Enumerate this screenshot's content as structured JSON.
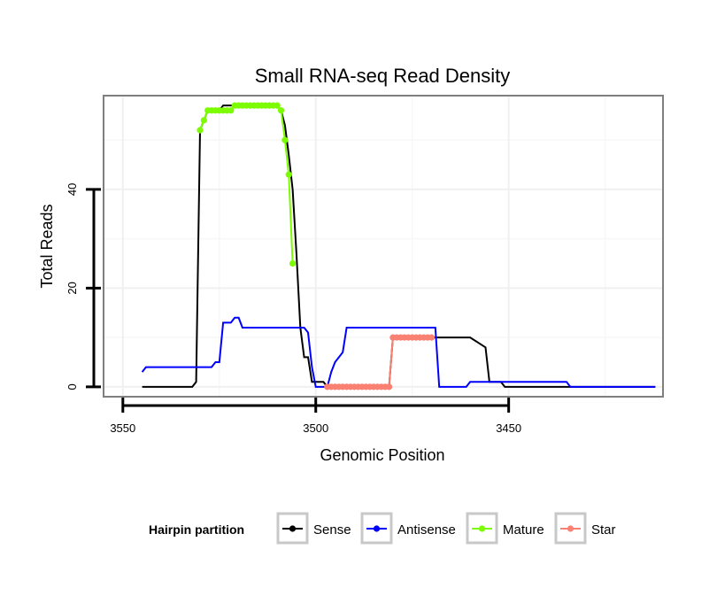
{
  "chart_data": {
    "type": "line",
    "title": "Small RNA-seq Read Density",
    "xlabel": "Genomic Position",
    "ylabel": "Total Reads",
    "xlim": [
      3555,
      3410
    ],
    "x_reversed": true,
    "ylim": [
      -2,
      59
    ],
    "x_ticks": [
      3550,
      3500,
      3450
    ],
    "y_ticks": [
      0,
      20,
      40
    ],
    "grid": true,
    "legend": {
      "title": "Hairpin partition",
      "placement": "bottom",
      "entries": [
        {
          "name": "Sense",
          "color": "#000000"
        },
        {
          "name": "Antisense",
          "color": "#0000ff"
        },
        {
          "name": "Mature",
          "color": "#7cfc00"
        },
        {
          "name": "Star",
          "color": "#fa8072"
        }
      ]
    },
    "series": [
      {
        "name": "Sense",
        "color": "#000000",
        "markers": false,
        "points": [
          [
            3545,
            0
          ],
          [
            3532,
            0
          ],
          [
            3531,
            1
          ],
          [
            3530,
            52
          ],
          [
            3529,
            54
          ],
          [
            3528,
            56
          ],
          [
            3527,
            56
          ],
          [
            3526,
            56
          ],
          [
            3525,
            56
          ],
          [
            3524,
            57
          ],
          [
            3520,
            57
          ],
          [
            3510,
            57
          ],
          [
            3509,
            56
          ],
          [
            3508,
            53
          ],
          [
            3507,
            47
          ],
          [
            3506,
            40
          ],
          [
            3505,
            27
          ],
          [
            3504,
            12
          ],
          [
            3503,
            6
          ],
          [
            3502,
            6
          ],
          [
            3501,
            1
          ],
          [
            3498,
            1
          ],
          [
            3497,
            0
          ],
          [
            3481,
            0
          ],
          [
            3480,
            10
          ],
          [
            3469,
            10
          ],
          [
            3460,
            10
          ],
          [
            3458,
            9
          ],
          [
            3456,
            8
          ],
          [
            3455,
            1
          ],
          [
            3452,
            1
          ],
          [
            3451,
            0
          ],
          [
            3412,
            0
          ]
        ]
      },
      {
        "name": "Antisense",
        "color": "#0000ff",
        "markers": false,
        "points": [
          [
            3545,
            3
          ],
          [
            3544,
            4
          ],
          [
            3530,
            4
          ],
          [
            3527,
            4
          ],
          [
            3526,
            5
          ],
          [
            3525,
            5
          ],
          [
            3524,
            13
          ],
          [
            3522,
            13
          ],
          [
            3521,
            14
          ],
          [
            3520,
            14
          ],
          [
            3519,
            12
          ],
          [
            3503,
            12
          ],
          [
            3502,
            11
          ],
          [
            3501,
            4
          ],
          [
            3500,
            0
          ],
          [
            3497,
            0
          ],
          [
            3496,
            3
          ],
          [
            3495,
            5
          ],
          [
            3494,
            6
          ],
          [
            3493,
            7
          ],
          [
            3492,
            12
          ],
          [
            3469,
            12
          ],
          [
            3468,
            0
          ],
          [
            3461,
            0
          ],
          [
            3460,
            1
          ],
          [
            3435,
            1
          ],
          [
            3434,
            0
          ],
          [
            3412,
            0
          ]
        ]
      },
      {
        "name": "Mature",
        "color": "#7cfc00",
        "markers": true,
        "points": [
          [
            3530,
            52
          ],
          [
            3529,
            54
          ],
          [
            3528,
            56
          ],
          [
            3527,
            56
          ],
          [
            3526,
            56
          ],
          [
            3525,
            56
          ],
          [
            3524,
            56
          ],
          [
            3523,
            56
          ],
          [
            3522,
            56
          ],
          [
            3521,
            57
          ],
          [
            3520,
            57
          ],
          [
            3519,
            57
          ],
          [
            3518,
            57
          ],
          [
            3517,
            57
          ],
          [
            3516,
            57
          ],
          [
            3515,
            57
          ],
          [
            3514,
            57
          ],
          [
            3513,
            57
          ],
          [
            3512,
            57
          ],
          [
            3511,
            57
          ],
          [
            3510,
            57
          ],
          [
            3509,
            56
          ],
          [
            3508,
            50
          ],
          [
            3507,
            43
          ],
          [
            3506,
            25
          ]
        ]
      },
      {
        "name": "Star",
        "color": "#fa8072",
        "markers": true,
        "points": [
          [
            3497,
            0
          ],
          [
            3496,
            0
          ],
          [
            3495,
            0
          ],
          [
            3494,
            0
          ],
          [
            3493,
            0
          ],
          [
            3492,
            0
          ],
          [
            3491,
            0
          ],
          [
            3490,
            0
          ],
          [
            3489,
            0
          ],
          [
            3488,
            0
          ],
          [
            3487,
            0
          ],
          [
            3486,
            0
          ],
          [
            3485,
            0
          ],
          [
            3484,
            0
          ],
          [
            3483,
            0
          ],
          [
            3482,
            0
          ],
          [
            3481,
            0
          ],
          [
            3480,
            10
          ],
          [
            3479,
            10
          ],
          [
            3478,
            10
          ],
          [
            3477,
            10
          ],
          [
            3476,
            10
          ],
          [
            3475,
            10
          ],
          [
            3474,
            10
          ],
          [
            3473,
            10
          ],
          [
            3472,
            10
          ],
          [
            3471,
            10
          ],
          [
            3470,
            10
          ]
        ]
      }
    ]
  }
}
